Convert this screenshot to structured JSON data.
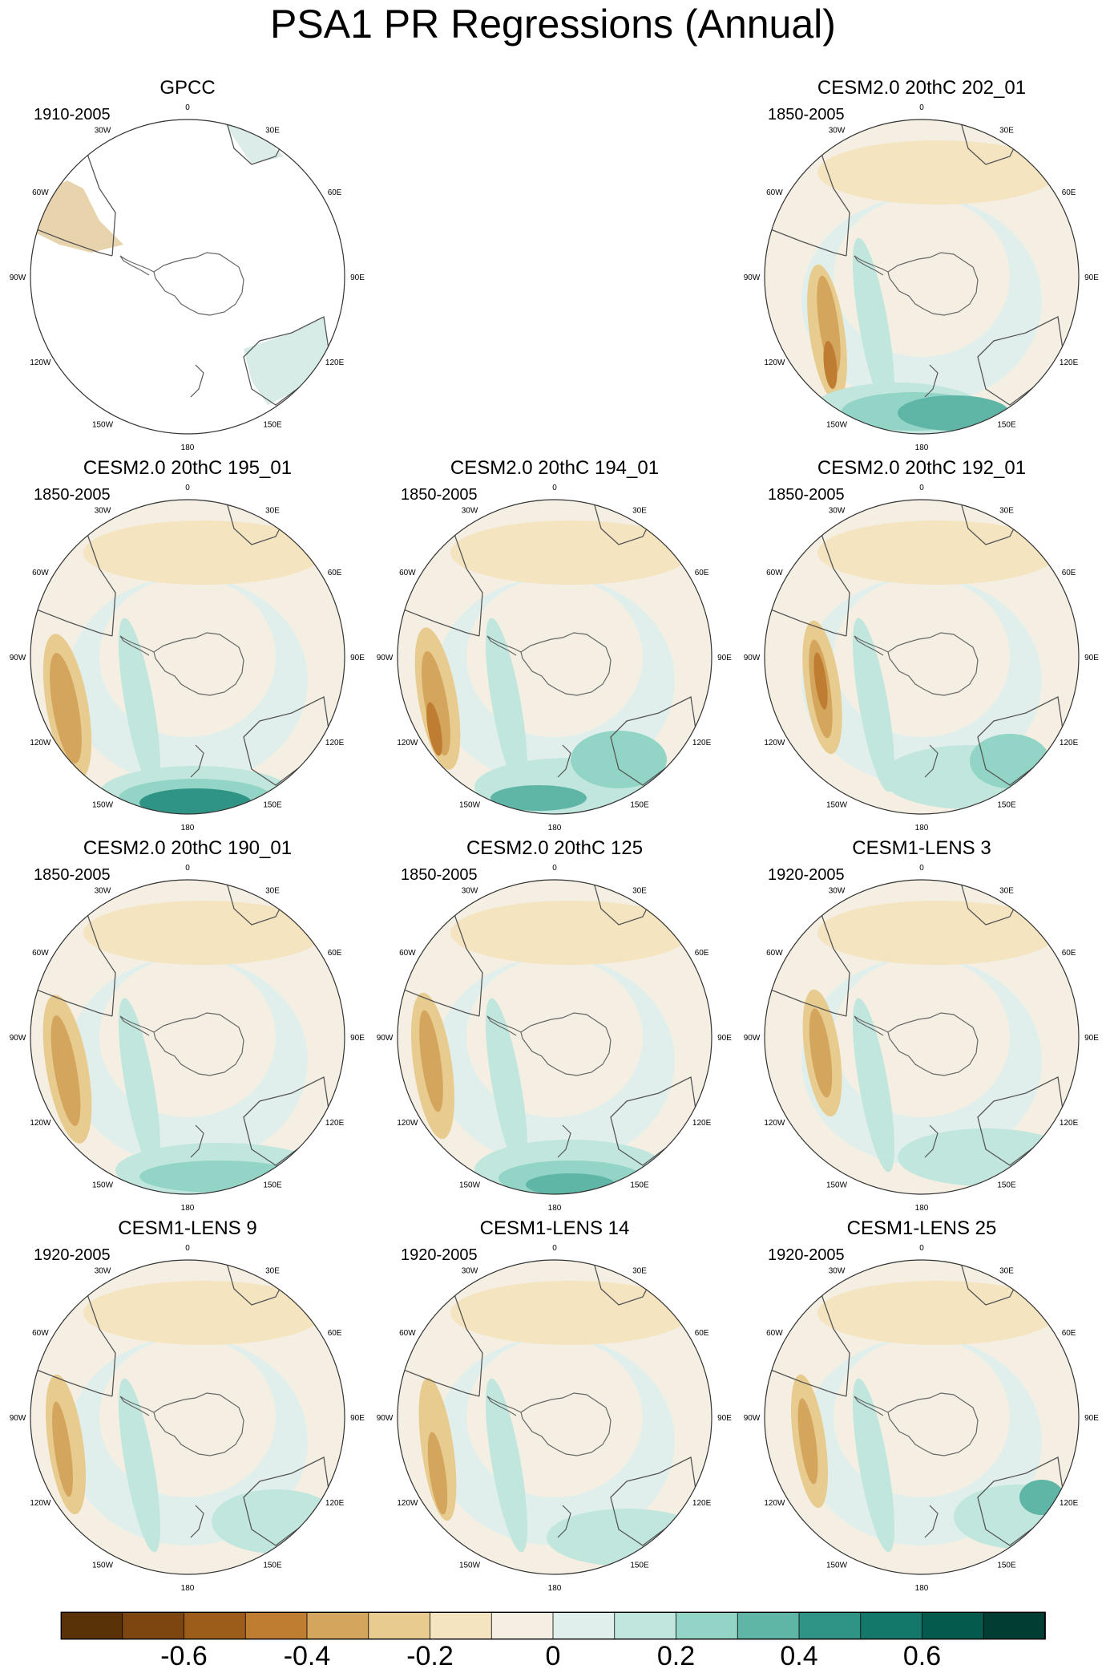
{
  "title": "PSA1 PR Regressions (Annual)",
  "lon_labels": [
    "0",
    "30E",
    "60E",
    "90E",
    "120E",
    "150E",
    "180",
    "150W",
    "120W",
    "90W",
    "60W",
    "30W"
  ],
  "panels": [
    {
      "title": "GPCC",
      "years": "1910-2005",
      "type": "obs"
    },
    {
      "title": "CESM2.0 20thC 202_01",
      "years": "1850-2005",
      "type": "model",
      "variant": 0
    },
    {
      "title": "CESM2.0 20thC 195_01",
      "years": "1850-2005",
      "type": "model",
      "variant": 1
    },
    {
      "title": "CESM2.0 20thC 194_01",
      "years": "1850-2005",
      "type": "model",
      "variant": 2
    },
    {
      "title": "CESM2.0 20thC 192_01",
      "years": "1850-2005",
      "type": "model",
      "variant": 3
    },
    {
      "title": "CESM2.0 20thC 190_01",
      "years": "1850-2005",
      "type": "model",
      "variant": 4
    },
    {
      "title": "CESM2.0 20thC 125",
      "years": "1850-2005",
      "type": "model",
      "variant": 5
    },
    {
      "title": "CESM1-LENS 3",
      "years": "1920-2005",
      "type": "model",
      "variant": 6
    },
    {
      "title": "CESM1-LENS 9",
      "years": "1920-2005",
      "type": "model",
      "variant": 7
    },
    {
      "title": "CESM1-LENS 14",
      "years": "1920-2005",
      "type": "model",
      "variant": 8
    },
    {
      "title": "CESM1-LENS 25",
      "years": "1920-2005",
      "type": "model",
      "variant": 9
    }
  ],
  "colorbar": {
    "colors": [
      "#5a3208",
      "#7d4510",
      "#9c5c1a",
      "#bf7d32",
      "#d4a55c",
      "#e8cb8e",
      "#f4e4c0",
      "#f4efe2",
      "#e1efec",
      "#c0e6de",
      "#92d4c6",
      "#60b6a6",
      "#2f9486",
      "#13776a",
      "#055a4e",
      "#013d33"
    ],
    "labels": [
      "-0.6",
      "-0.4",
      "-0.2",
      "0",
      "0.2",
      "0.4",
      "0.6"
    ]
  }
}
